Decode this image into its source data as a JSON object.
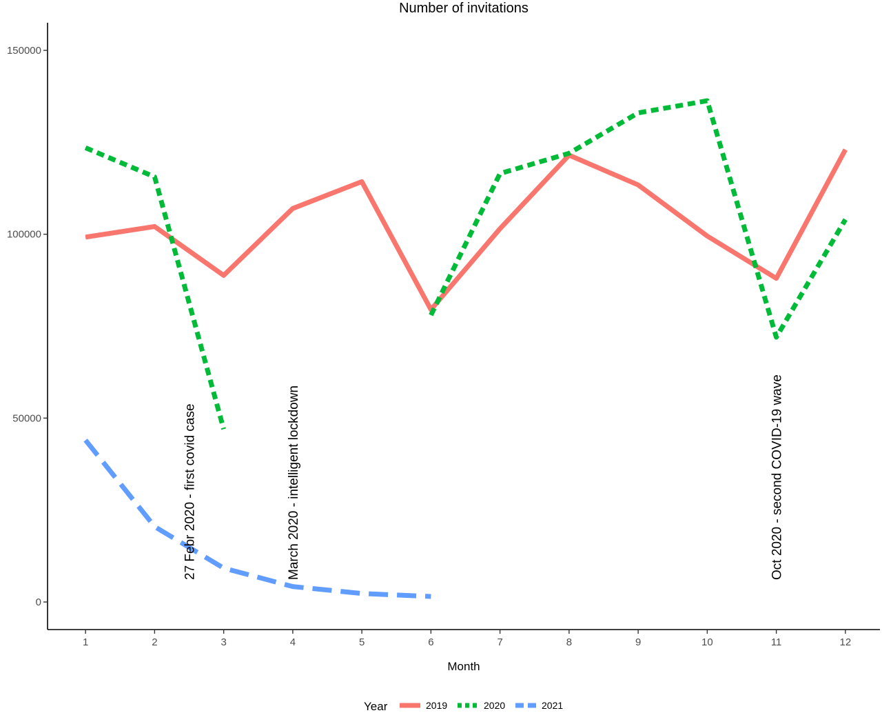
{
  "chart_data": {
    "type": "line",
    "title": "Number of invitations",
    "xlabel": "Month",
    "ylabel": "",
    "x": [
      1,
      2,
      3,
      4,
      5,
      6,
      7,
      8,
      9,
      10,
      11,
      12
    ],
    "x_ticks": [
      "1",
      "2",
      "3",
      "4",
      "5",
      "6",
      "7",
      "8",
      "9",
      "10",
      "11",
      "12"
    ],
    "xlim": [
      0.45,
      12.5
    ],
    "ylim": [
      -7500,
      157500
    ],
    "y_ticks": [
      0,
      50000,
      100000,
      150000
    ],
    "y_tick_labels": [
      "0",
      "50000",
      "100000",
      "150000"
    ],
    "grid": false,
    "legend": {
      "title": "Year",
      "position": "bottom"
    },
    "series": [
      {
        "name": "2019",
        "color": "#F8766D",
        "dash": "solid",
        "x": [
          1,
          2,
          3,
          4,
          5,
          6,
          7,
          8,
          9,
          10,
          11,
          12
        ],
        "values": [
          99200,
          102100,
          88800,
          107000,
          114300,
          79500,
          101500,
          121500,
          113400,
          99500,
          88000,
          123000
        ]
      },
      {
        "name": "2020",
        "color": "#00BA38",
        "dash": "dotted",
        "x": [
          1,
          2,
          3,
          6,
          7,
          8,
          9,
          10,
          11,
          12
        ],
        "values": [
          123500,
          115600,
          47000,
          78000,
          116500,
          122000,
          133000,
          136300,
          72000,
          104000
        ],
        "breaks_after_x": [
          3
        ]
      },
      {
        "name": "2021",
        "color": "#619CFF",
        "dash": "dashed",
        "x": [
          1,
          2,
          3,
          4,
          5,
          6
        ],
        "values": [
          44000,
          20500,
          9200,
          4200,
          2300,
          1500
        ]
      }
    ],
    "annotations": [
      {
        "text": "27 Febr 2020 - first covid case",
        "x": 2.5,
        "y": 6000,
        "rotation": -90
      },
      {
        "text": "March 2020 - intelligent lockdown",
        "x": 4,
        "y": 6000,
        "rotation": -90
      },
      {
        "text": "Oct 2020 - second COVID-19 wave",
        "x": 11,
        "y": 6000,
        "rotation": -90
      }
    ]
  }
}
